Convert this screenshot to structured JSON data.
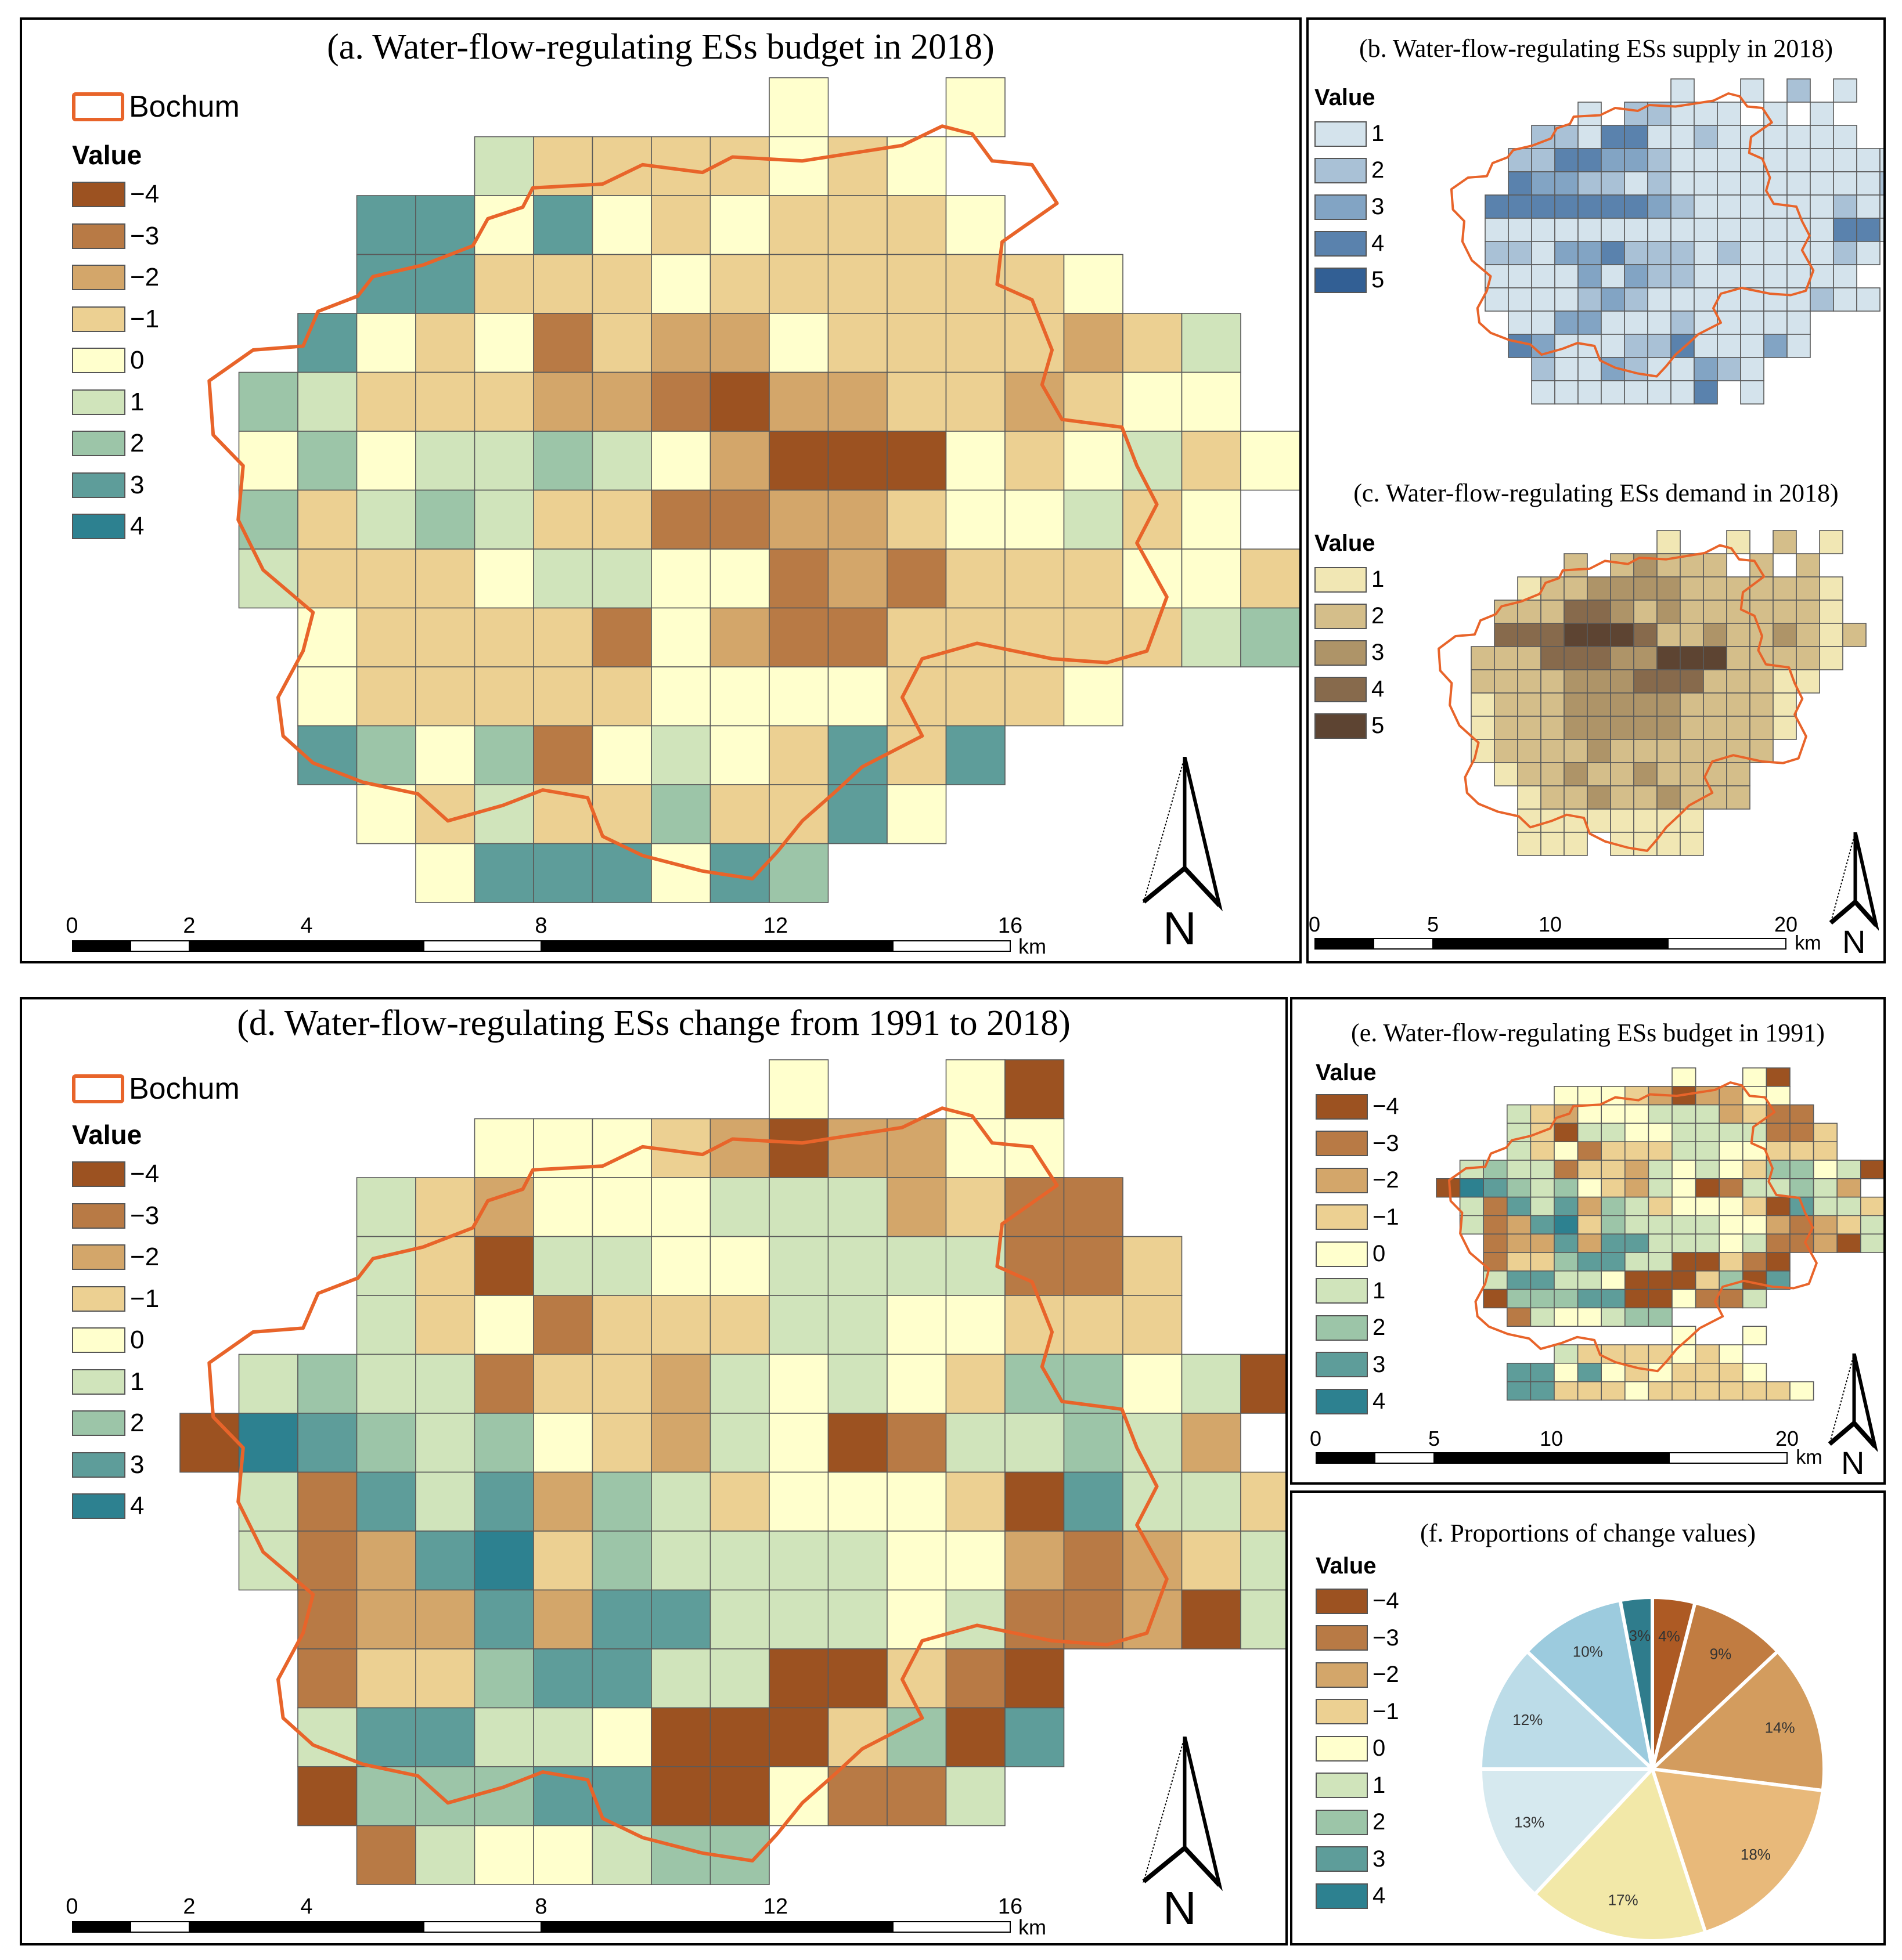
{
  "colors": {
    "budget": [
      "#9c5221",
      "#b87a45",
      "#d3a66a",
      "#ecd092",
      "#ffffcd",
      "#d0e4bb",
      "#9cc5a8",
      "#5e9d9a",
      "#2d8190"
    ],
    "supply": [
      "#d4e3ec",
      "#a9c1d6",
      "#82a4c4",
      "#5a82ad",
      "#325f94"
    ],
    "demand": [
      "#f1e7b4",
      "#d4be8a",
      "#ae9468",
      "#876a4c",
      "#5d4432"
    ],
    "pie": [
      "#ad5a24",
      "#c17c41",
      "#d39c5e",
      "#e8b97a",
      "#f2e8a8",
      "#d6e9ef",
      "#bcdce8",
      "#9ccbde",
      "#2f7c8c"
    ],
    "boundary": "#e8642a"
  },
  "panel_a": {
    "title": "(a. Water-flow-regulating ESs budget in 2018)",
    "boundary_label": "Bochum",
    "legend_title": "Value",
    "legend": [
      "−4",
      "−3",
      "−2",
      "−1",
      "0",
      "1",
      "2",
      "3",
      "4"
    ],
    "scale_labels": [
      "0",
      "2",
      "4",
      "8",
      "12",
      "16"
    ],
    "scale_unit": "km",
    "north": "N"
  },
  "panel_b": {
    "title": "(b. Water-flow-regulating ESs supply in 2018)",
    "legend_title": "Value",
    "legend": [
      "1",
      "2",
      "3",
      "4",
      "5"
    ]
  },
  "panel_c": {
    "title": "(c. Water-flow-regulating ESs demand in 2018)",
    "legend_title": "Value",
    "legend": [
      "1",
      "2",
      "3",
      "4",
      "5"
    ],
    "scale_labels": [
      "0",
      "5",
      "10",
      "20"
    ],
    "scale_unit": "km",
    "north": "N"
  },
  "panel_d": {
    "title": "(d. Water-flow-regulating ESs change from 1991 to 2018)",
    "boundary_label": "Bochum",
    "legend_title": "Value",
    "legend": [
      "−4",
      "−3",
      "−2",
      "−1",
      "0",
      "1",
      "2",
      "3",
      "4"
    ],
    "scale_labels": [
      "0",
      "2",
      "4",
      "8",
      "12",
      "16"
    ],
    "scale_unit": "km",
    "north": "N"
  },
  "panel_e": {
    "title": "(e. Water-flow-regulating ESs budget in 1991)",
    "legend_title": "Value",
    "legend": [
      "−4",
      "−3",
      "−2",
      "−1",
      "0",
      "1",
      "2",
      "3",
      "4"
    ],
    "scale_labels": [
      "0",
      "5",
      "10",
      "20"
    ],
    "scale_unit": "km",
    "north": "N"
  },
  "panel_f": {
    "title": "(f. Proportions of change values)",
    "legend_title": "Value",
    "legend": [
      "−4",
      "−3",
      "−2",
      "−1",
      "0",
      "1",
      "2",
      "3",
      "4"
    ]
  },
  "chart_data": {
    "type": "pie",
    "title": "(f. Proportions of change values)",
    "categories": [
      "−4",
      "−3",
      "−2",
      "−1",
      "0",
      "1",
      "2",
      "3",
      "4"
    ],
    "values": [
      4,
      9,
      14,
      18,
      17,
      13,
      12,
      10,
      3
    ],
    "labels": [
      "4%",
      "9%",
      "14%",
      "18%",
      "17%",
      "13%",
      "12%",
      "10%",
      "3%"
    ]
  },
  "grids": {
    "a": [
      "..........0..0..",
      ".....1-1-1-1-10-10",
      "...33030-10-1-1-10.",
      "...33-1-1-10-1-1-1-1-1-10..",
      "..30-10-3-1-2-20-1-1-1-1-2-11.",
      ".21-1-1-1-2-2-3-4-2-2-1-1-2-100",
      ".02011210-2-4-4-40-101-10",
      ".2-1121-1-1-3-3-2-2-1001-10",
      ".1-1-1-101100-3-2-3-1-1-100-1",
      "..0-1-1-1-1-30-2-3-3-1-1-1-1-112",
      "..0-1-1-1-1-10000-1-1-10...",
      "..3202-3010-13-13...",
      "...0-11-1-12-1-130....",
      "....0333032......."
    ],
    "d": [
      "..........0..0-4",
      ".....000-1-2-4-2-200",
      "...1-1-2000111-2-1-3-3..",
      "...1-1-411001111-3-3-1..",
      "...1-10-3-1-1-11100-1-1-1..",
      ".1211-3-1-1-21010-12201-4",
      "-4432120-1-210-4-31121-2",
      ".1-3313-221-1000-1-4311-1-1",
      ".1-3-234-12111100-2-3-2-1122-3",
      "..-3-2-23-23311101-3-3-2-41...",
      "..-3-1-123311-4-4-1-3-4.....",
      "..133110-4-4-4-12-43......",
      "..-422233-4-40-3-31.......",
      "...-3100122........"
    ],
    "b": [
      "..........1..1.2.1",
      "......1.22111.1.1",
      "....22144112111111",
      "...22443321111111111",
      "...43322121111111112",
      "..4444444321111112111",
      "..111111111111111441",
      "..22133422212111121",
      "..1111313221111111",
      "..11112321111111211",
      "...1133111211111",
      "...4311122411131",
      "....2113211321",
      "....11111114.1"
    ],
    "c": [
      "..........1..1.2.1",
      "......2.23222.2.2",
      "....12233332222221",
      "...222443232222221",
      "...4445554223223212",
      "..2224443355522221",
      "..222233344422211",
      "..12223333322221",
      "..12223333322221",
      "..1222232222222",
      "...12232232222",
      "....1223223222",
      "....11111111",
      "....111.1111"
    ]
  }
}
